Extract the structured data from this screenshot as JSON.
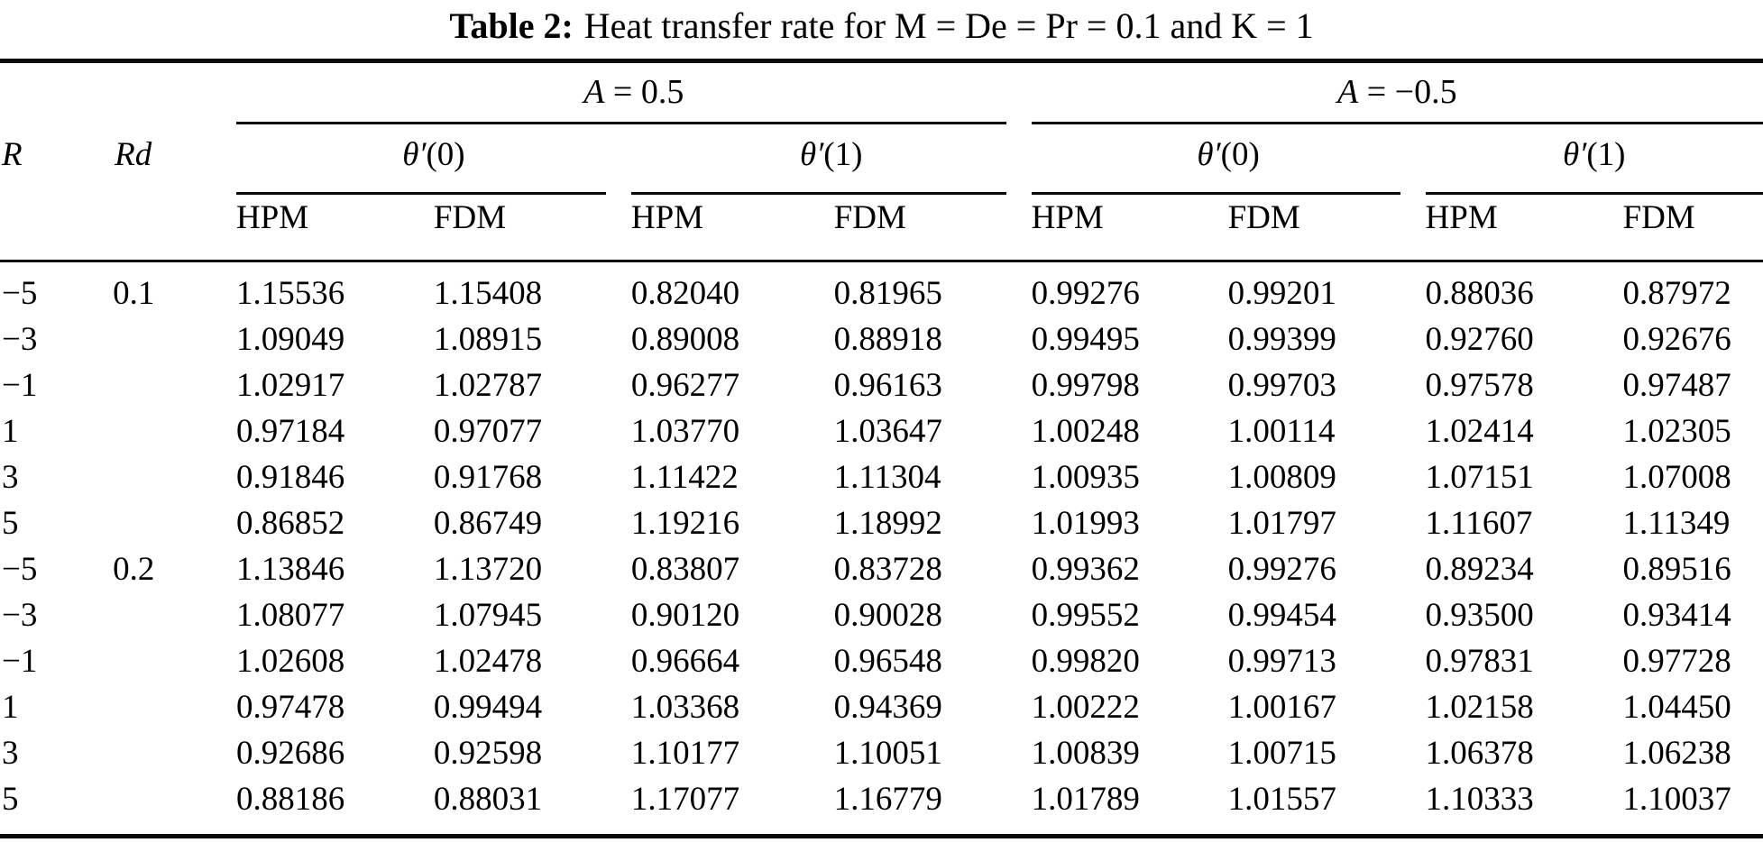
{
  "title": {
    "label": "Table 2:",
    "text": "Heat transfer rate for M = De = Pr = 0.1 and K = 1"
  },
  "table": {
    "groups": [
      {
        "sym": "A",
        "rest": " = 0.5"
      },
      {
        "sym": "A",
        "rest": " = −0.5"
      }
    ],
    "row_headers": [
      "R",
      "Rd"
    ],
    "subgroups": [
      {
        "sym": "θ′",
        "arg": "(0)"
      },
      {
        "sym": "θ′",
        "arg": "(1)"
      },
      {
        "sym": "θ′",
        "arg": "(0)"
      },
      {
        "sym": "θ′",
        "arg": "(1)"
      }
    ],
    "method_headers": [
      "HPM",
      "FDM",
      "HPM",
      "FDM",
      "HPM",
      "FDM",
      "HPM",
      "FDM"
    ],
    "rows": [
      [
        "−5",
        "0.1",
        "1.15536",
        "1.15408",
        "0.82040",
        "0.81965",
        "0.99276",
        "0.99201",
        "0.88036",
        "0.87972"
      ],
      [
        "−3",
        "",
        "1.09049",
        "1.08915",
        "0.89008",
        "0.88918",
        "0.99495",
        "0.99399",
        "0.92760",
        "0.92676"
      ],
      [
        "−1",
        "",
        "1.02917",
        "1.02787",
        "0.96277",
        "0.96163",
        "0.99798",
        "0.99703",
        "0.97578",
        "0.97487"
      ],
      [
        "1",
        "",
        "0.97184",
        "0.97077",
        "1.03770",
        "1.03647",
        "1.00248",
        "1.00114",
        "1.02414",
        "1.02305"
      ],
      [
        "3",
        "",
        "0.91846",
        "0.91768",
        "1.11422",
        "1.11304",
        "1.00935",
        "1.00809",
        "1.07151",
        "1.07008"
      ],
      [
        "5",
        "",
        "0.86852",
        "0.86749",
        "1.19216",
        "1.18992",
        "1.01993",
        "1.01797",
        "1.11607",
        "1.11349"
      ],
      [
        "−5",
        "0.2",
        "1.13846",
        "1.13720",
        "0.83807",
        "0.83728",
        "0.99362",
        "0.99276",
        "0.89234",
        "0.89516"
      ],
      [
        "−3",
        "",
        "1.08077",
        "1.07945",
        "0.90120",
        "0.90028",
        "0.99552",
        "0.99454",
        "0.93500",
        "0.93414"
      ],
      [
        "−1",
        "",
        "1.02608",
        "1.02478",
        "0.96664",
        "0.96548",
        "0.99820",
        "0.99713",
        "0.97831",
        "0.97728"
      ],
      [
        "1",
        "",
        "0.97478",
        "0.99494",
        "1.03368",
        "0.94369",
        "1.00222",
        "1.00167",
        "1.02158",
        "1.04450"
      ],
      [
        "3",
        "",
        "0.92686",
        "0.92598",
        "1.10177",
        "1.10051",
        "1.00839",
        "1.00715",
        "1.06378",
        "1.06238"
      ],
      [
        "5",
        "",
        "0.88186",
        "0.88031",
        "1.17077",
        "1.16779",
        "1.01789",
        "1.01557",
        "1.10333",
        "1.10037"
      ]
    ]
  }
}
